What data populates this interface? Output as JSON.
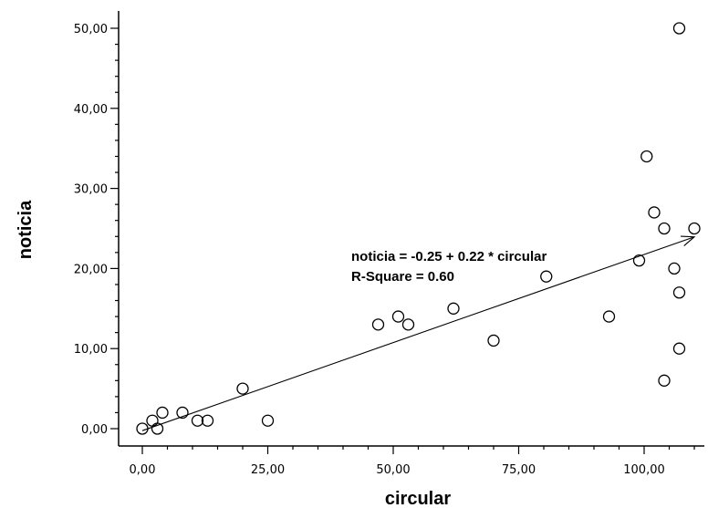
{
  "chart_data": {
    "type": "scatter",
    "xlabel": "circular",
    "ylabel": "noticia",
    "xlim": [
      -5,
      112
    ],
    "ylim": [
      -2,
      52
    ],
    "grid": false,
    "x_ticks": [
      0,
      25,
      50,
      75,
      100
    ],
    "x_tick_labels": [
      "0,00",
      "25,00",
      "50,00",
      "75,00",
      "100,00"
    ],
    "y_ticks": [
      0,
      10,
      20,
      30,
      40,
      50
    ],
    "y_tick_labels": [
      "0,00",
      "10,00",
      "20,00",
      "30,00",
      "40,00",
      "50,00"
    ],
    "points": [
      {
        "x": 0,
        "y": 0
      },
      {
        "x": 2,
        "y": 1
      },
      {
        "x": 3,
        "y": 0
      },
      {
        "x": 4,
        "y": 2
      },
      {
        "x": 8,
        "y": 2
      },
      {
        "x": 11,
        "y": 1
      },
      {
        "x": 13,
        "y": 1
      },
      {
        "x": 20,
        "y": 5
      },
      {
        "x": 25,
        "y": 1
      },
      {
        "x": 47,
        "y": 13
      },
      {
        "x": 51,
        "y": 14
      },
      {
        "x": 53,
        "y": 13
      },
      {
        "x": 62,
        "y": 15
      },
      {
        "x": 70,
        "y": 11
      },
      {
        "x": 80.5,
        "y": 19
      },
      {
        "x": 93,
        "y": 14
      },
      {
        "x": 99,
        "y": 21
      },
      {
        "x": 100.5,
        "y": 34
      },
      {
        "x": 102,
        "y": 27
      },
      {
        "x": 104,
        "y": 25
      },
      {
        "x": 104,
        "y": 6
      },
      {
        "x": 106,
        "y": 20
      },
      {
        "x": 107,
        "y": 10
      },
      {
        "x": 107,
        "y": 17
      },
      {
        "x": 107,
        "y": 50
      },
      {
        "x": 110,
        "y": 25
      }
    ],
    "fit_line": {
      "intercept": -0.25,
      "slope": 0.22,
      "x_from": 0,
      "x_to": 110
    },
    "annotations": [
      "noticia = -0.25 + 0.22 * circular",
      "R-Square = 0.60"
    ]
  }
}
